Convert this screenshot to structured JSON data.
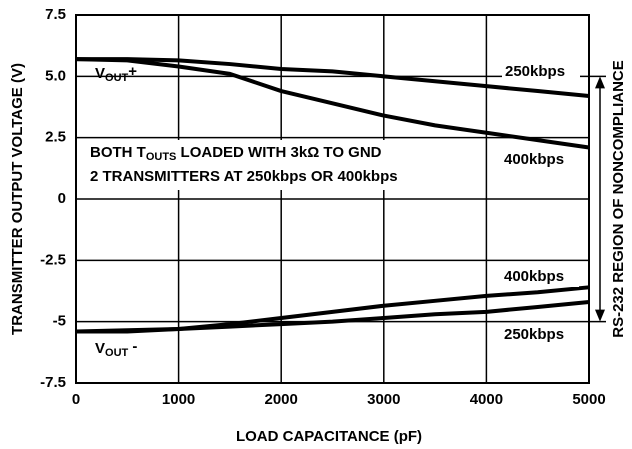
{
  "chart_data": {
    "type": "line",
    "xlabel": "LOAD CAPACITANCE (pF)",
    "ylabel": "TRANSMITTER OUTPUT VOLTAGE (V)",
    "x": [
      0,
      500,
      1000,
      1500,
      2000,
      2500,
      3000,
      3500,
      4000,
      4500,
      5000
    ],
    "series": [
      {
        "name": "250kbps",
        "color": "#000000",
        "values": [
          5.7,
          5.7,
          5.65,
          5.5,
          5.3,
          5.2,
          5.0,
          4.8,
          4.6,
          4.4,
          4.2
        ]
      },
      {
        "name": "400kbps",
        "color": "#000000",
        "values": [
          5.7,
          5.65,
          5.4,
          5.1,
          4.4,
          3.9,
          3.4,
          3.0,
          2.7,
          2.4,
          2.1
        ]
      },
      {
        "name": "400kbps",
        "color": "#000000",
        "values": [
          -5.4,
          -5.35,
          -5.3,
          -5.1,
          -4.85,
          -4.6,
          -4.35,
          -4.15,
          -3.95,
          -3.8,
          -3.6
        ]
      },
      {
        "name": "250kbps",
        "color": "#000000",
        "values": [
          -5.4,
          -5.4,
          -5.3,
          -5.2,
          -5.1,
          -5.0,
          -4.85,
          -4.7,
          -4.6,
          -4.4,
          -4.2
        ]
      }
    ],
    "xlim": [
      0,
      5000
    ],
    "xticks": [
      0,
      1000,
      2000,
      3000,
      4000,
      5000
    ],
    "ylim": [
      -7.5,
      7.5
    ],
    "yticks": [
      -7.5,
      -5,
      -2.5,
      0,
      2.5,
      {
        "value": 5,
        "label": "5.0"
      },
      7.5
    ],
    "grid": true,
    "annotations": {
      "vout_plus": [
        "V",
        "OUT",
        "+"
      ],
      "vout_minus": [
        "V",
        "OUT",
        " -"
      ],
      "note1": [
        "BOTH T",
        "OUTS",
        " LOADED WITH 3kΩ TO GND"
      ],
      "note2": "2 TRANSMITTERS AT 250kbps OR 400kbps",
      "region": "RS-232 REGION OF NONCOMPLIANCE"
    }
  }
}
